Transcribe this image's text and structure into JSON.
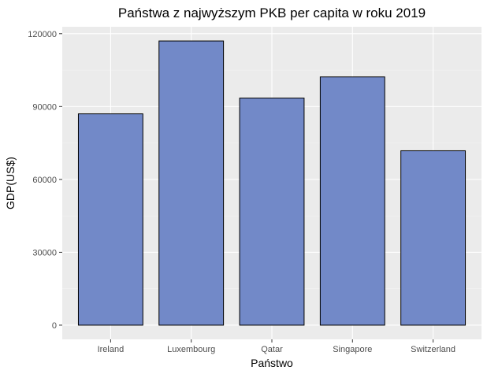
{
  "chart_data": {
    "type": "bar",
    "title": "Państwa z najwyższym PKB per capita w roku 2019",
    "xlabel": "Państwo",
    "ylabel": "GDP(US$)",
    "categories": [
      "Ireland",
      "Luxembourg",
      "Qatar",
      "Singapore",
      "Switzerland"
    ],
    "values": [
      87000,
      117000,
      93500,
      102200,
      71800
    ],
    "y_ticks": [
      0,
      30000,
      60000,
      90000,
      120000
    ],
    "y_tick_labels": [
      "0",
      "30000",
      "60000",
      "90000",
      "120000"
    ],
    "ylim": [
      -5850,
      122850
    ],
    "grid": true,
    "legend": "none",
    "colors": {
      "bar_fill": "#7289c8",
      "bar_stroke": "#000000",
      "panel_bg": "#ebebeb",
      "grid_major": "#ffffff",
      "grid_minor": "#f2f2f2"
    }
  }
}
